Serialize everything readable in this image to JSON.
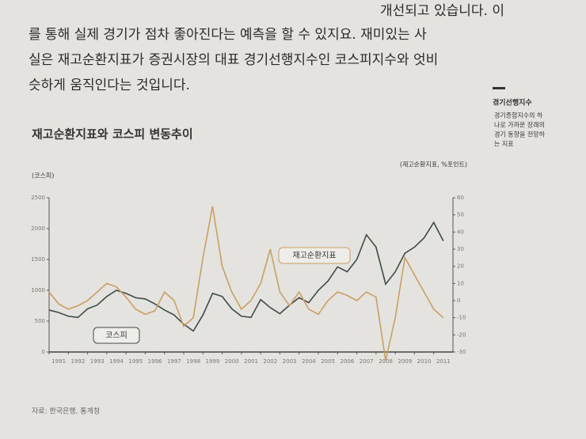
{
  "body_text": [
    "개선되고 있습니다. 이",
    "를 통해 실제 경기가 점차 좋아진다는 예측을 할 수 있지요. 재미있는 사",
    "실은 재고순환지표가 증권시장의 대표 경기선행지수인 코스피지수와 엇비",
    "슷하게 움직인다는 것입니다."
  ],
  "sidebar": {
    "term": "경기선행지수",
    "lines": [
      "경기종합지수의 하",
      "나로 가까운 장래의",
      "경기 동향을 전망하",
      "는 지표"
    ]
  },
  "source": "자료: 한국은행, 통계청",
  "chart_data": {
    "type": "line",
    "title": "재고순환지표와 코스피 변동추이",
    "y_label": "(코스피)",
    "y2_label": "(재고순환지표, %포인트)",
    "x": [
      1991,
      1991.5,
      1992,
      1992.5,
      1993,
      1993.5,
      1994,
      1994.5,
      1995,
      1995.5,
      1996,
      1996.5,
      1997,
      1997.5,
      1998,
      1998.5,
      1999,
      1999.5,
      2000,
      2000.5,
      2001,
      2001.5,
      2002,
      2002.5,
      2003,
      2003.5,
      2004,
      2004.5,
      2005,
      2005.5,
      2006,
      2006.5,
      2007,
      2007.5,
      2008,
      2008.5,
      2009,
      2009.5,
      2010,
      2010.5,
      2011,
      2011.5
    ],
    "xlim": [
      1991,
      2012
    ],
    "xticks": [
      1991,
      1992,
      1993,
      1994,
      1995,
      1996,
      1997,
      1998,
      1999,
      2000,
      2001,
      2002,
      2003,
      2004,
      2005,
      2006,
      2007,
      2008,
      2009,
      2010,
      2011
    ],
    "ylim": [
      0,
      2500
    ],
    "yticks": [
      0,
      500,
      1000,
      1500,
      2000,
      2500
    ],
    "y2lim": [
      -30,
      60
    ],
    "y2ticks": [
      -30,
      -20,
      -10,
      0,
      10,
      20,
      30,
      40,
      50,
      60
    ],
    "series": [
      {
        "name": "코스피",
        "color": "#3f4b47",
        "values": [
          680,
          640,
          580,
          560,
          700,
          760,
          900,
          1000,
          950,
          880,
          860,
          780,
          680,
          600,
          450,
          340,
          600,
          950,
          900,
          700,
          580,
          560,
          850,
          720,
          620,
          760,
          880,
          800,
          1000,
          1150,
          1380,
          1300,
          1500,
          1900,
          1700,
          1100,
          1300,
          1600,
          1700,
          1850,
          2100,
          1800
        ]
      },
      {
        "name": "재고순환지표",
        "color": "#c9a064",
        "axis": "y2",
        "values": [
          5,
          -2,
          -5,
          -3,
          0,
          5,
          10,
          8,
          2,
          -5,
          -8,
          -6,
          5,
          0,
          -15,
          -10,
          25,
          55,
          20,
          5,
          -5,
          0,
          10,
          30,
          5,
          -3,
          5,
          -5,
          -8,
          0,
          5,
          3,
          0,
          5,
          2,
          -35,
          -10,
          25,
          15,
          5,
          -5,
          -10
        ]
      }
    ]
  }
}
